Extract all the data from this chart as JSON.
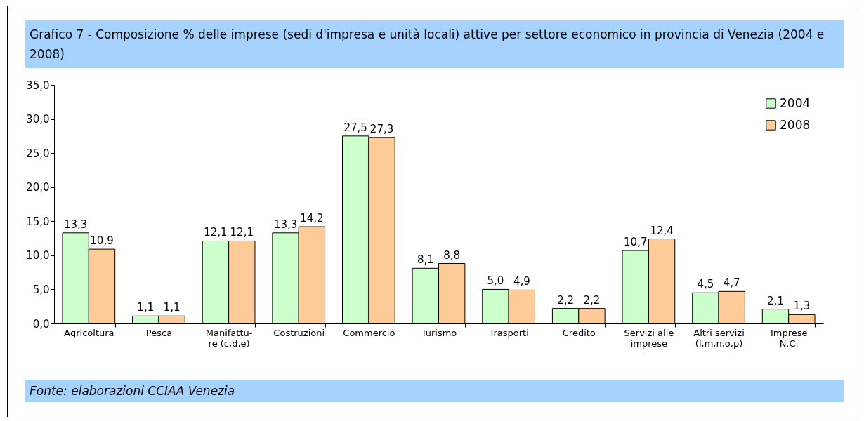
{
  "chart_data": {
    "type": "bar",
    "title": "Grafico 7 - Composizione % delle imprese (sedi d'impresa e unità locali) attive per settore economico in provincia di Venezia (2004 e 2008)",
    "categories": [
      "Agricoltura",
      "Pesca",
      "Manifattu-\nre (c,d,e)",
      "Costruzioni",
      "Commercio",
      "Turismo",
      "Trasporti",
      "Credito",
      "Servizi alle\nimprese",
      "Altri servizi\n(l,m,n,o,p)",
      "Imprese\nN.C."
    ],
    "series": [
      {
        "name": "2004",
        "color": "#ccffcc",
        "values": [
          13.3,
          1.1,
          12.1,
          13.3,
          27.5,
          8.1,
          5.0,
          2.2,
          10.7,
          4.5,
          2.1
        ],
        "value_labels": [
          "13,3",
          "1,1",
          "12,1",
          "13,3",
          "27,5",
          "8,1",
          "5,0",
          "2,2",
          "10,7",
          "4,5",
          "2,1"
        ]
      },
      {
        "name": "2008",
        "color": "#ffcc99",
        "values": [
          10.9,
          1.1,
          12.1,
          14.2,
          27.3,
          8.8,
          4.9,
          2.2,
          12.4,
          4.7,
          1.3
        ],
        "value_labels": [
          "10,9",
          "1,1",
          "12,1",
          "14,2",
          "27,3",
          "8,8",
          "4,9",
          "2,2",
          "12,4",
          "4,7",
          "1,3"
        ]
      }
    ],
    "ylim": [
      0,
      35
    ],
    "yticks": [
      {
        "value": 0,
        "label": "0,0"
      },
      {
        "value": 5,
        "label": "5,0"
      },
      {
        "value": 10,
        "label": "10,0"
      },
      {
        "value": 15,
        "label": "15,0"
      },
      {
        "value": 20,
        "label": "20,0"
      },
      {
        "value": 25,
        "label": "25,0"
      },
      {
        "value": 30,
        "label": "30,0"
      },
      {
        "value": 35,
        "label": "35,0"
      }
    ],
    "grid": false,
    "legend": "top right",
    "annotations": [
      "Fonte: elaborazioni CCIAA Venezia"
    ]
  }
}
